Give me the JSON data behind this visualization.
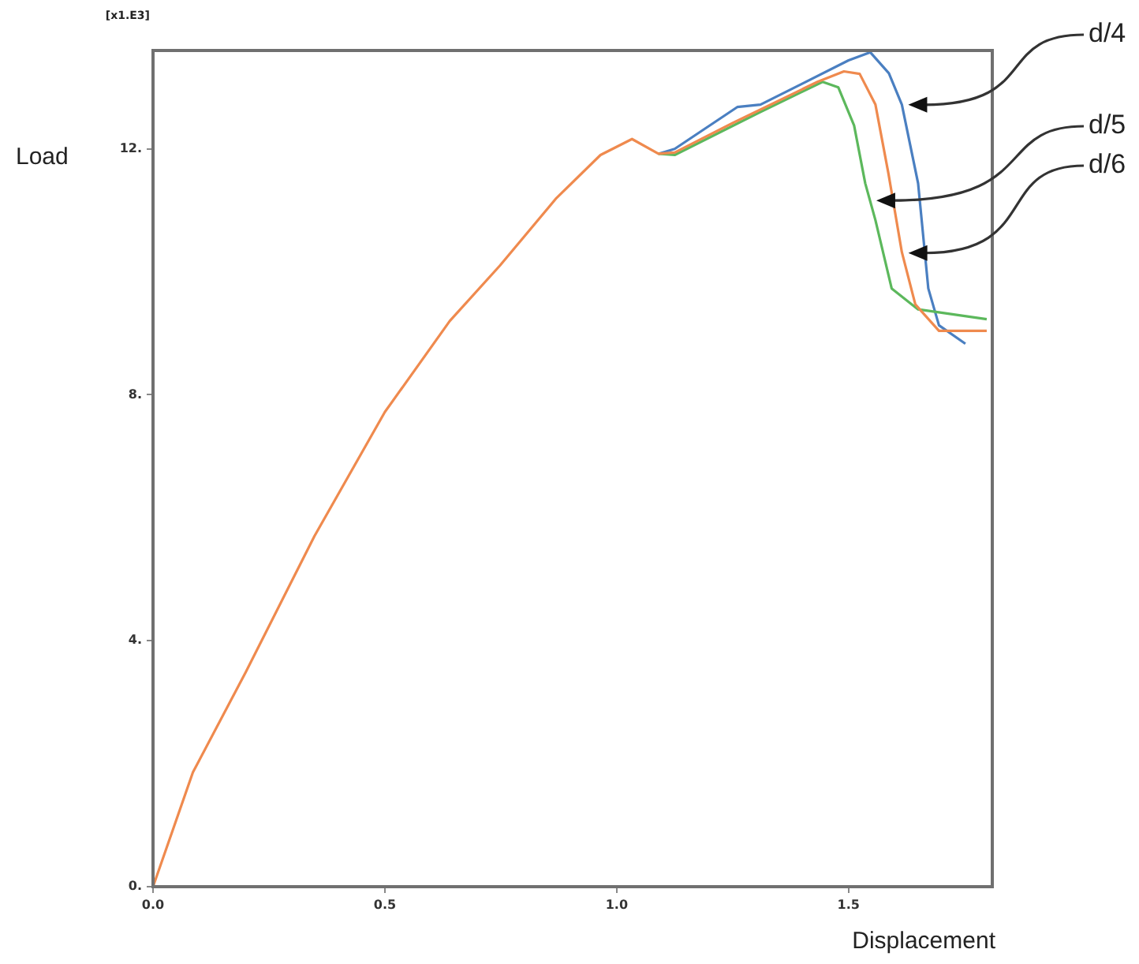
{
  "chart_data": {
    "type": "line",
    "xlabel": "Displacement",
    "ylabel": "Load",
    "annotations": [
      "[x1.E3]"
    ],
    "xlim": [
      0,
      1.81
    ],
    "ylim": [
      0,
      13.6
    ],
    "xticks": [
      {
        "value": 0,
        "label": "0.0"
      },
      {
        "value": 0.5,
        "label": "0.5"
      },
      {
        "value": 1,
        "label": "1.0"
      },
      {
        "value": 1.5,
        "label": "1.5"
      }
    ],
    "yticks": [
      {
        "value": 0,
        "label": "0."
      },
      {
        "value": 4,
        "label": "4."
      },
      {
        "value": 8,
        "label": "8."
      },
      {
        "value": 12,
        "label": "12."
      }
    ],
    "grid": false,
    "legend": false,
    "marker": "none",
    "line_style": "solid",
    "series": [
      {
        "name": "d/4",
        "color": "#4a7fc1",
        "x": [
          1.09,
          1.125,
          1.26,
          1.31,
          1.4,
          1.5,
          1.547,
          1.587,
          1.615,
          1.65,
          1.672,
          1.695,
          1.752
        ],
        "values": [
          11.92,
          12.0,
          12.68,
          12.72,
          13.06,
          13.44,
          13.57,
          13.23,
          12.72,
          11.44,
          9.73,
          9.13,
          8.83
        ]
      },
      {
        "name": "d/5",
        "color": "#5cb85c",
        "x": [
          1.09,
          1.125,
          1.307,
          1.444,
          1.478,
          1.512,
          1.536,
          1.558,
          1.593,
          1.65,
          1.798
        ],
        "values": [
          11.92,
          11.9,
          12.59,
          13.09,
          13.0,
          12.38,
          11.44,
          10.84,
          9.73,
          9.39,
          9.23
        ]
      },
      {
        "name": "d/6",
        "color": "#ef8a4e",
        "x": [
          0,
          0.086,
          0.2,
          0.348,
          0.5,
          0.64,
          0.748,
          0.87,
          0.965,
          1.033,
          1.09,
          1.125,
          1.25,
          1.433,
          1.49,
          1.524,
          1.558,
          1.586,
          1.615,
          1.644,
          1.695,
          1.798
        ],
        "values": [
          0,
          1.86,
          3.49,
          5.7,
          7.72,
          9.2,
          10.1,
          11.2,
          11.9,
          12.16,
          11.92,
          11.94,
          12.42,
          13.09,
          13.26,
          13.22,
          12.72,
          11.6,
          10.32,
          9.47,
          9.04,
          9.04
        ]
      }
    ]
  }
}
